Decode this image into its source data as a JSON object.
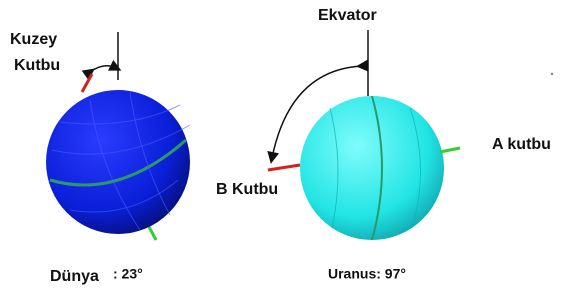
{
  "labels": {
    "north_pole_line1": "Kuzey",
    "north_pole_line2": "Kutbu",
    "equator": "Ekvator",
    "pole_a": "A kutbu",
    "pole_b": "B Kutbu",
    "earth": "Dünya",
    "earth_tilt": ": 23°",
    "uranus": "Uranus: 97°"
  }
}
